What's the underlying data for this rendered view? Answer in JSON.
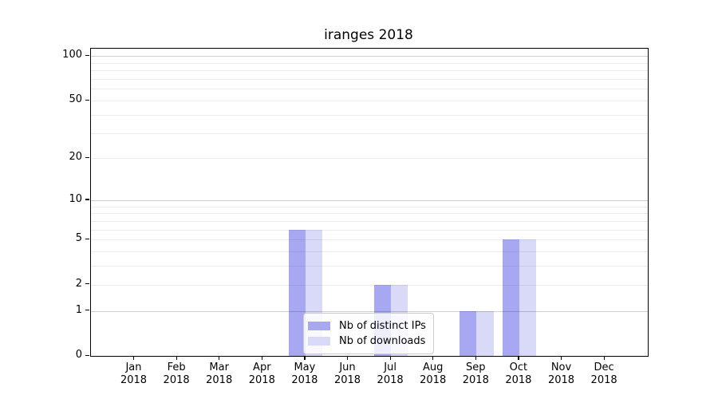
{
  "chart_data": {
    "type": "bar",
    "title": "iranges 2018",
    "months": [
      "Jan",
      "Feb",
      "Mar",
      "Apr",
      "May",
      "Jun",
      "Jul",
      "Aug",
      "Sep",
      "Oct",
      "Nov",
      "Dec"
    ],
    "year_label": "2018",
    "series": [
      {
        "name": "Nb of distinct IPs",
        "color": "#a8a8f2",
        "values": [
          0,
          0,
          0,
          0,
          6,
          0,
          2,
          0,
          1,
          5,
          0,
          0
        ]
      },
      {
        "name": "Nb of downloads",
        "color": "#d9d9f8",
        "values": [
          0,
          0,
          0,
          0,
          6,
          0,
          2,
          0,
          1,
          5,
          0,
          0
        ]
      }
    ],
    "y_scale": "log10(value+1)",
    "ylim": [
      0,
      112
    ],
    "y_ticks": [
      0,
      1,
      2,
      5,
      10,
      20,
      50,
      100
    ],
    "y_major_gridlines": [
      1,
      10,
      100
    ],
    "y_minor_gridlines": [
      2,
      3,
      4,
      5,
      6,
      7,
      8,
      9,
      20,
      30,
      40,
      50,
      60,
      70,
      80,
      90
    ],
    "grid": true,
    "legend_position": "lower center"
  },
  "colors": {
    "grid_minor": "rgba(0,0,0,0.075)",
    "grid_major": "rgba(0,0,0,0.19)",
    "axis": "#000000",
    "legend_border": "#cccccc",
    "legend_background": "rgba(255,255,255,0.8)"
  }
}
